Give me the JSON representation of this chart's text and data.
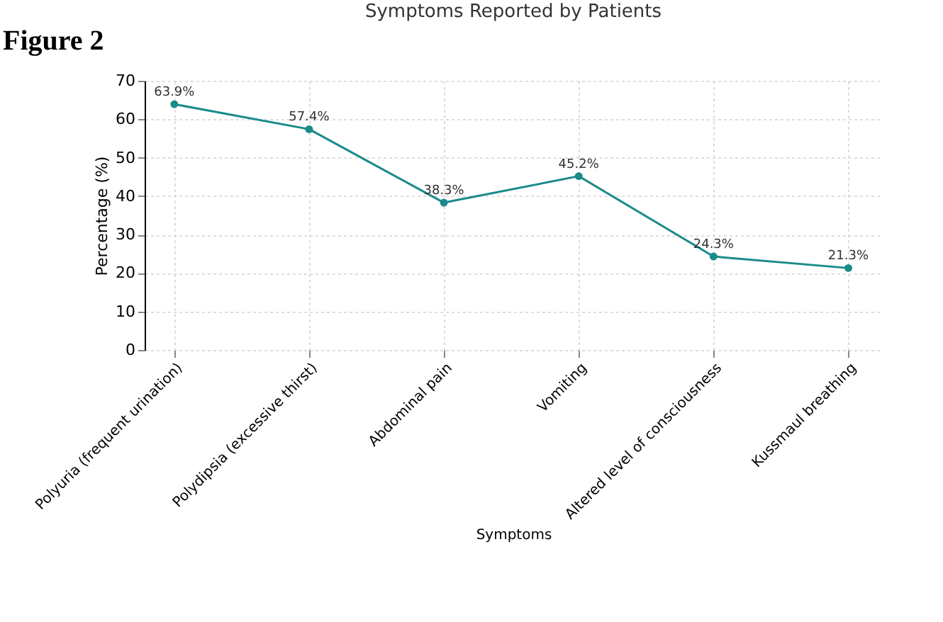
{
  "chart_data": {
    "type": "line",
    "title": "Symptoms Reported by Patients",
    "xlabel": "Symptoms",
    "ylabel": "Percentage (%)",
    "categories": [
      "Polyuria (frequent urination)",
      "Polydipsia (excessive thirst)",
      "Abdominal pain",
      "Vomiting",
      "Altered level of consciousness",
      "Kussmaul breathing"
    ],
    "series": [
      {
        "color": "#1a8a8a",
        "values": [
          63.9,
          57.4,
          38.3,
          45.2,
          24.3,
          21.3
        ],
        "value_labels": [
          "63.9%",
          "57.4%",
          "38.3%",
          "45.2%",
          "24.3%",
          "21.3%"
        ]
      }
    ],
    "ylim": [
      0,
      70
    ],
    "yticks": [
      0,
      10,
      20,
      30,
      40,
      50,
      60,
      70
    ],
    "grid": true,
    "marker": "circle",
    "line_style": "solid",
    "annotations": [
      "Figure 2"
    ]
  }
}
